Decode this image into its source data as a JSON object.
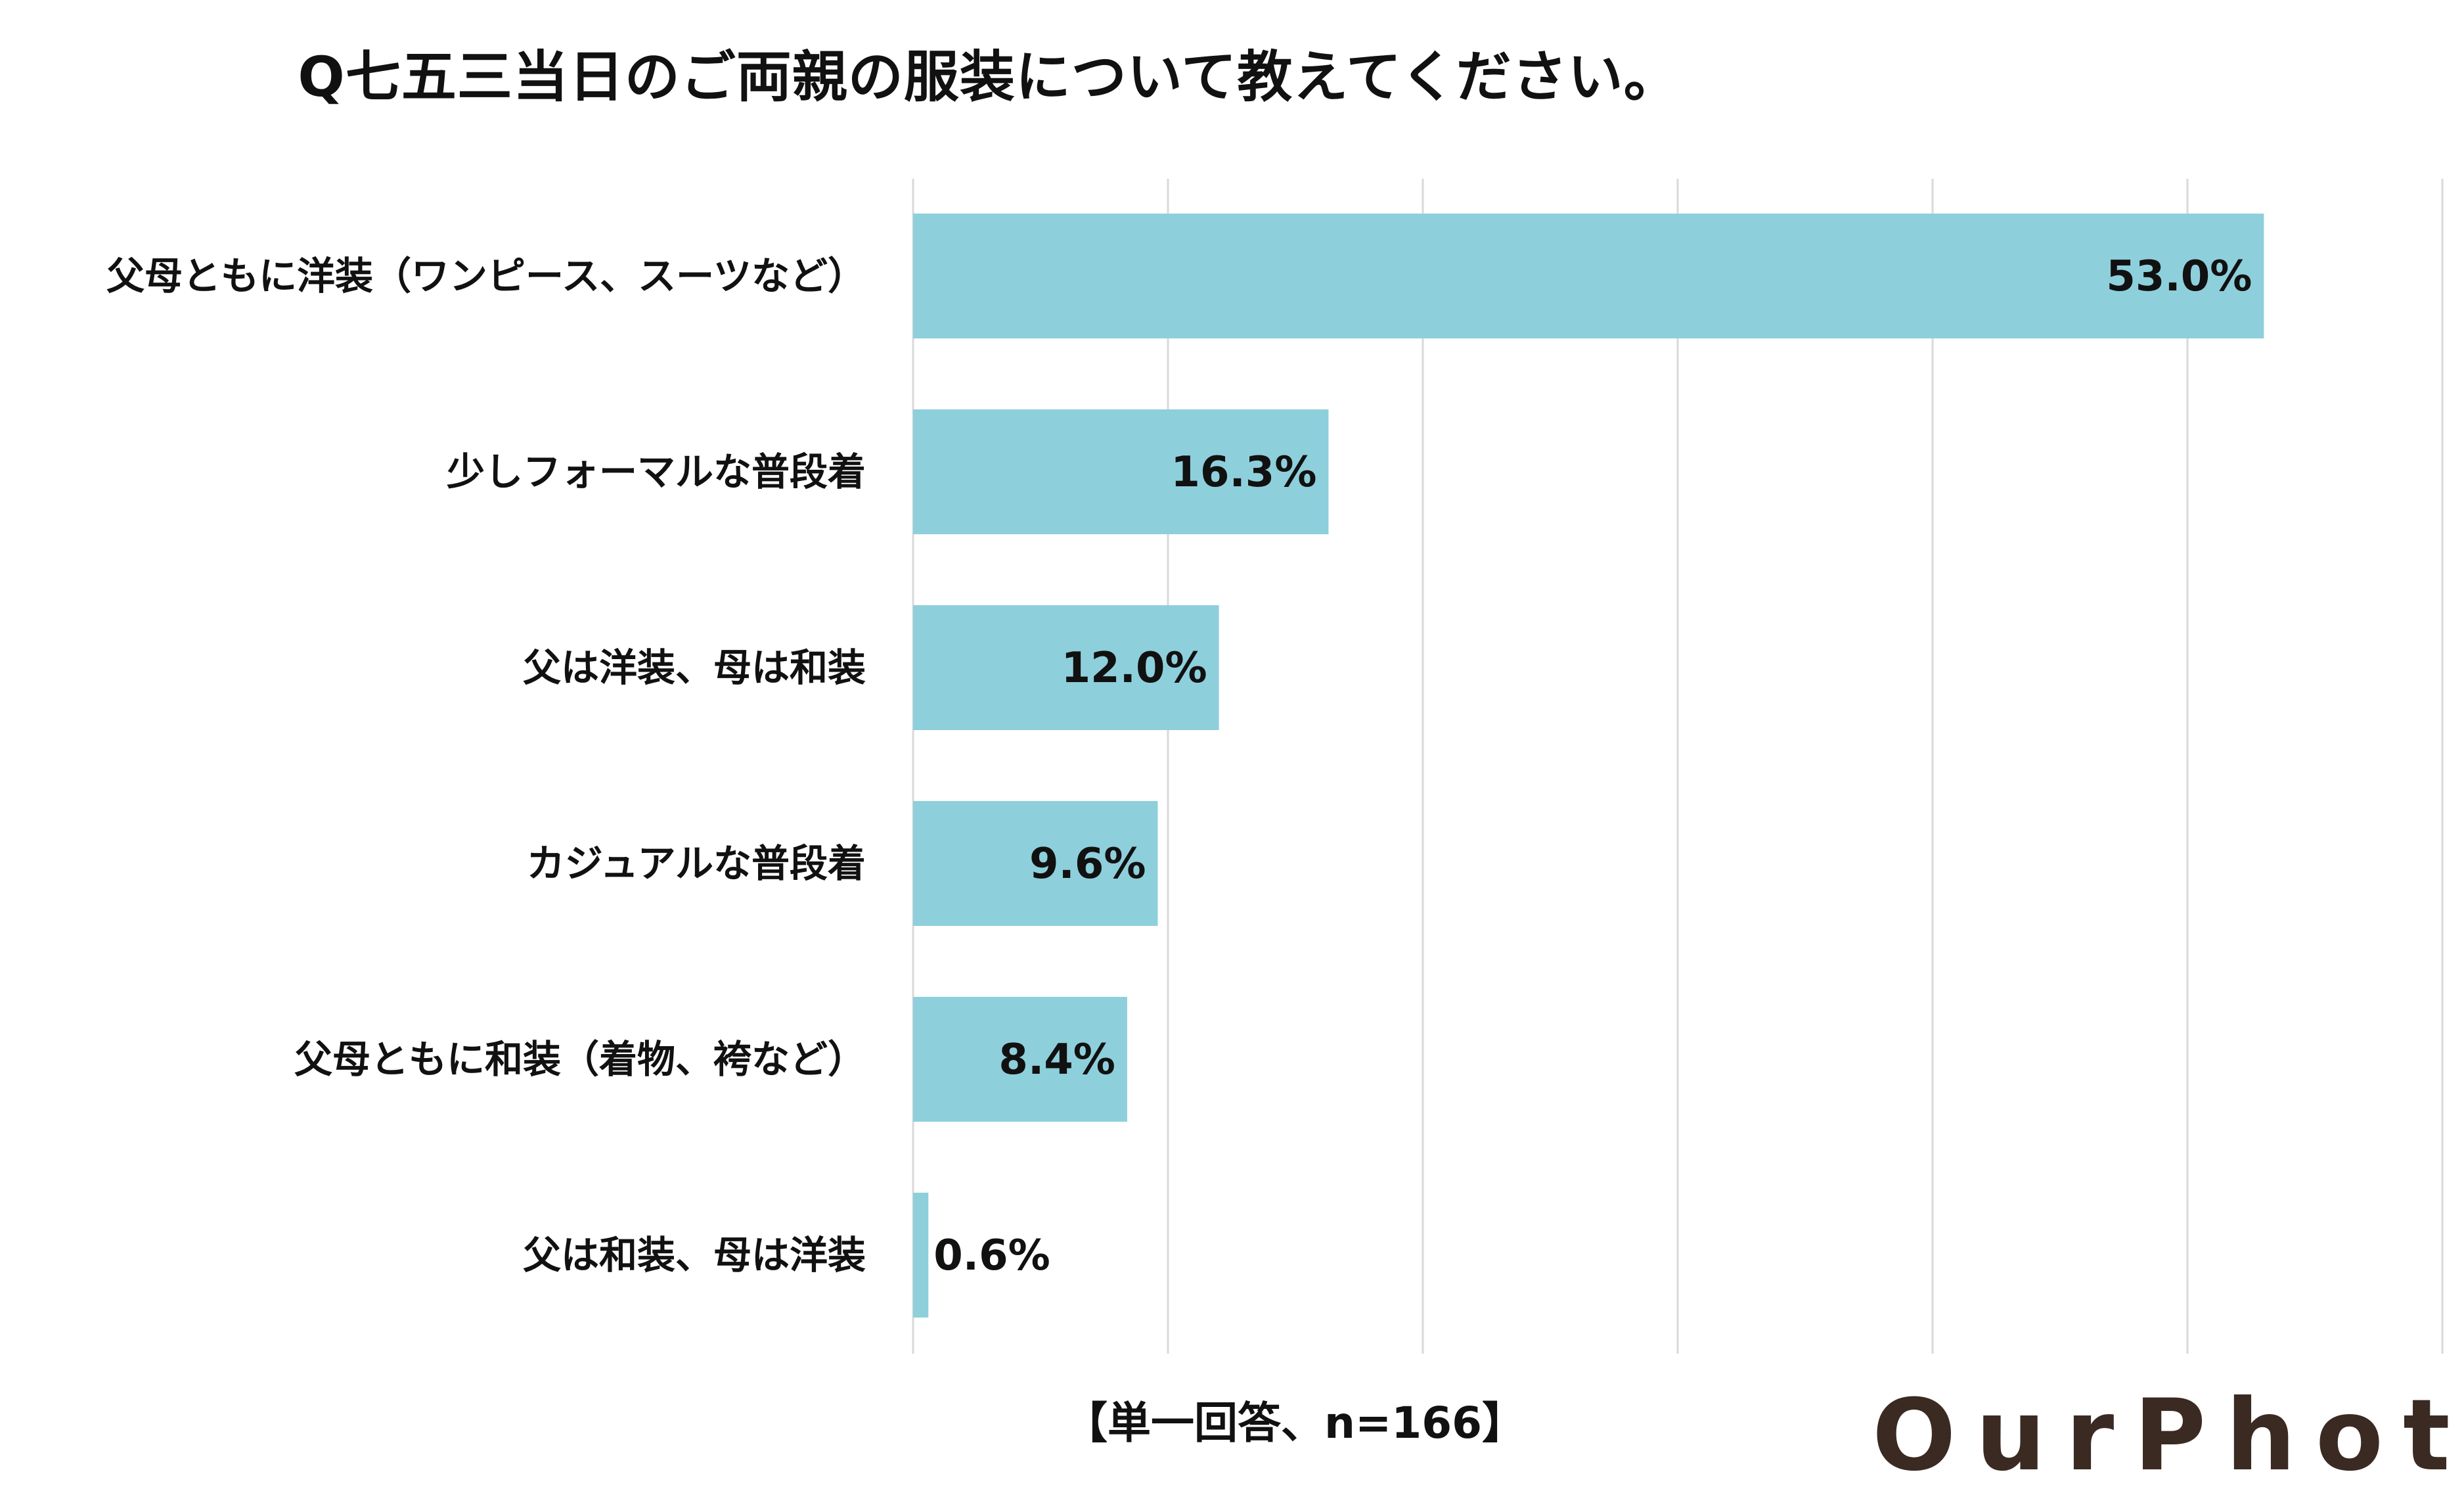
{
  "chart_data": {
    "type": "bar",
    "orientation": "horizontal",
    "title": "Q七五三当日のご両親の服装について教えてください。",
    "categories": [
      "父母ともに洋装（ワンピース、スーツなど）",
      "少しフォーマルな普段着",
      "父は洋装、母は和装",
      "カジュアルな普段着",
      "父母ともに和装（着物、袴など）",
      "父は和装、母は洋装"
    ],
    "values": [
      53.0,
      16.3,
      12.0,
      9.6,
      8.4,
      0.6
    ],
    "value_labels": [
      "53.0%",
      "16.3%",
      "12.0%",
      "9.6%",
      "8.4%",
      "0.6%"
    ],
    "unit": "%",
    "xlim": [
      0,
      60
    ],
    "gridlines": [
      0,
      10,
      20,
      30,
      40,
      50,
      60
    ],
    "grid": true,
    "bar_color": "#8ecfdc",
    "gridline_color": "#d9d9d9"
  },
  "footnote": "【単一回答、n=166】",
  "brand": "OurPhoto"
}
